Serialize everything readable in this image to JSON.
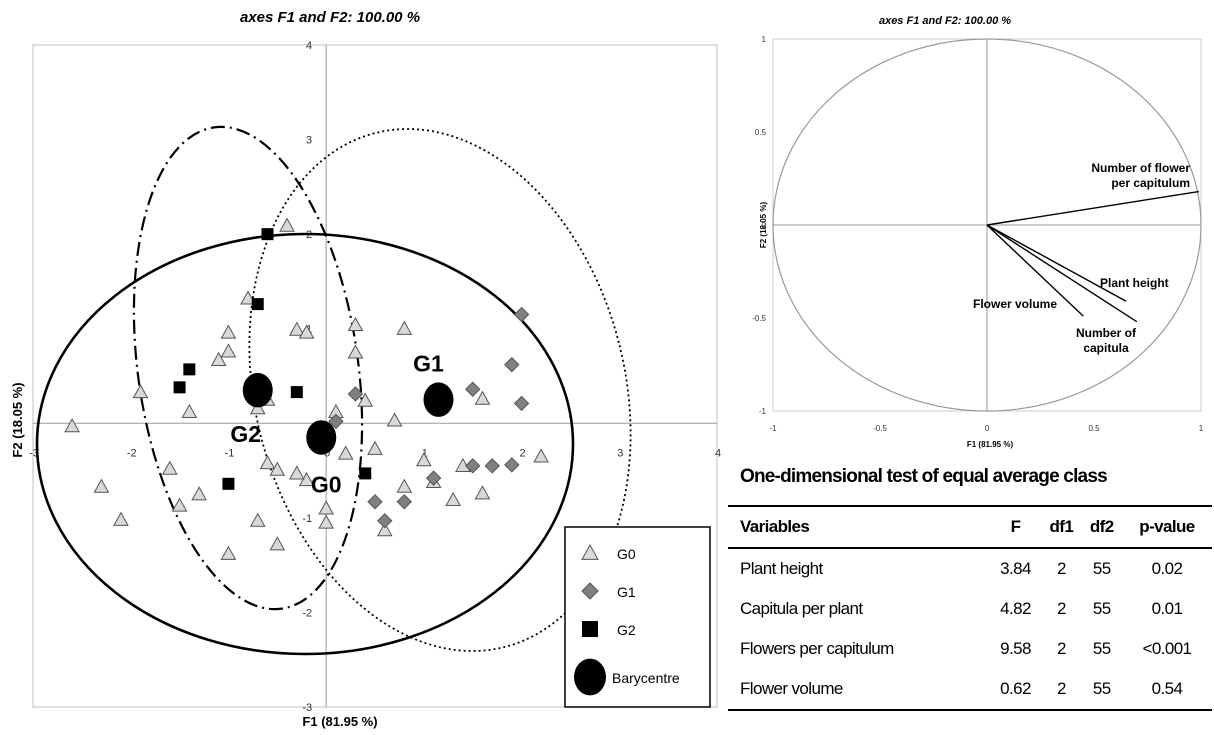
{
  "chart_data": [
    {
      "type": "scatter",
      "title": "axes F1 and F2: 100.00 %",
      "xlabel": "F1 (81.95 %)",
      "ylabel": "F2 (18.05 %)",
      "xlim": [
        -3,
        4
      ],
      "ylim": [
        -3,
        4
      ],
      "xticks": [
        -3,
        -2,
        -1,
        0,
        1,
        2,
        3,
        4
      ],
      "yticks": [
        -3,
        -2,
        -1,
        1,
        2,
        3,
        4
      ],
      "xtick_labels": [
        "-3",
        "-2",
        "-1",
        "0",
        "1",
        "2",
        "3",
        "4"
      ],
      "ytick_labels": [
        "-3",
        "-2",
        "-1",
        "1",
        "2",
        "3",
        "4"
      ],
      "grid": false,
      "series": [
        {
          "name": "G0",
          "marker": "triangle",
          "color": "#d9d9d9",
          "points": [
            [
              -2.6,
              -0.03
            ],
            [
              -2.3,
              -0.67
            ],
            [
              -2.1,
              -1.02
            ],
            [
              -1.9,
              0.33
            ],
            [
              -1.6,
              -0.48
            ],
            [
              -1.5,
              -0.87
            ],
            [
              -1.4,
              0.12
            ],
            [
              -1.3,
              -0.75
            ],
            [
              -1.1,
              0.67
            ],
            [
              -1.0,
              0.96
            ],
            [
              -1.0,
              0.76
            ],
            [
              -1.0,
              -1.38
            ],
            [
              -0.8,
              1.32
            ],
            [
              -0.7,
              -1.03
            ],
            [
              -0.7,
              0.16
            ],
            [
              -0.6,
              0.25
            ],
            [
              -0.6,
              -0.42
            ],
            [
              -0.5,
              -0.49
            ],
            [
              -0.5,
              -1.28
            ],
            [
              -0.4,
              2.09
            ],
            [
              -0.3,
              0.99
            ],
            [
              -0.2,
              0.96
            ],
            [
              -0.2,
              -0.6
            ],
            [
              0.0,
              -0.9
            ],
            [
              0.0,
              -1.05
            ],
            [
              0.1,
              0.12
            ],
            [
              0.2,
              -0.32
            ],
            [
              0.3,
              1.04
            ],
            [
              0.3,
              0.75
            ],
            [
              0.4,
              0.24
            ],
            [
              0.5,
              -0.27
            ],
            [
              0.6,
              -1.13
            ],
            [
              0.7,
              0.03
            ],
            [
              0.8,
              1.0
            ],
            [
              0.8,
              -0.67
            ],
            [
              1.0,
              -0.39
            ],
            [
              1.1,
              -0.62
            ],
            [
              1.3,
              -0.81
            ],
            [
              1.4,
              -0.45
            ],
            [
              1.6,
              0.26
            ],
            [
              1.6,
              -0.74
            ],
            [
              2.2,
              -0.35
            ],
            [
              -0.3,
              -0.53
            ]
          ]
        },
        {
          "name": "G1",
          "marker": "diamond",
          "color": "#808080",
          "points": [
            [
              0.1,
              0.02
            ],
            [
              0.3,
              0.31
            ],
            [
              0.5,
              -0.83
            ],
            [
              0.8,
              -0.83
            ],
            [
              0.6,
              -1.03
            ],
            [
              1.1,
              -0.58
            ],
            [
              1.5,
              -0.45
            ],
            [
              1.5,
              0.36
            ],
            [
              1.7,
              -0.45
            ],
            [
              1.9,
              -0.44
            ],
            [
              2.0,
              0.21
            ],
            [
              1.9,
              0.62
            ],
            [
              2.0,
              1.15
            ]
          ]
        },
        {
          "name": "G2",
          "marker": "square",
          "color": "#000000",
          "points": [
            [
              -1.5,
              0.38
            ],
            [
              -1.4,
              0.57
            ],
            [
              -0.6,
              2.0
            ],
            [
              -0.7,
              1.26
            ],
            [
              -1.0,
              -0.64
            ],
            [
              -0.3,
              0.33
            ],
            [
              0.4,
              -0.53
            ]
          ]
        },
        {
          "name": "Barycentre",
          "marker": "circle",
          "color": "#000000",
          "labels": [
            "G0",
            "G1",
            "G2"
          ],
          "points": [
            [
              -0.05,
              -0.15
            ],
            [
              1.15,
              0.25
            ],
            [
              -0.7,
              0.35
            ]
          ]
        }
      ],
      "legend": {
        "position": "bottom-right",
        "entries": [
          "G0",
          "G1",
          "G2",
          "Barycentre"
        ]
      },
      "confidence_ellipses": [
        {
          "group": "G0",
          "style": "solid"
        },
        {
          "group": "G1",
          "style": "dotted"
        },
        {
          "group": "G2",
          "style": "dash-dot"
        }
      ]
    },
    {
      "type": "line",
      "title": "axes F1 and F2: 100.00 %",
      "xlabel": "F1 (81.95 %)",
      "ylabel": "F2 (18.05 %)",
      "xlim": [
        -1,
        1
      ],
      "ylim": [
        -1,
        1
      ],
      "xtick_labels": [
        "-1",
        "-0.5",
        "0",
        "0.5",
        "1"
      ],
      "ytick_labels": [
        "1",
        "0.5",
        "0",
        "-0.5",
        "-1"
      ],
      "unit_circle": true,
      "vectors": [
        {
          "name": "Number of flower per capitulum",
          "x": 0.99,
          "y": 0.18
        },
        {
          "name": "Plant height",
          "x": 0.65,
          "y": -0.41
        },
        {
          "name": "Number of capitula",
          "x": 0.7,
          "y": -0.52
        },
        {
          "name": "Flower volume",
          "x": 0.45,
          "y": -0.49
        }
      ]
    },
    {
      "type": "table",
      "title": "One-dimensional test of equal average class",
      "columns": [
        "Variables",
        "F",
        "df1",
        "df2",
        "p-value"
      ],
      "rows": [
        [
          "Plant height",
          "3.84",
          "2",
          "55",
          "0.02"
        ],
        [
          "Capitula per plant",
          "4.82",
          "2",
          "55",
          "0.01"
        ],
        [
          "Flowers per capitulum",
          "9.58",
          "2",
          "55",
          "<0.001"
        ],
        [
          "Flower volume",
          "0.62",
          "2",
          "55",
          "0.54"
        ]
      ]
    }
  ]
}
